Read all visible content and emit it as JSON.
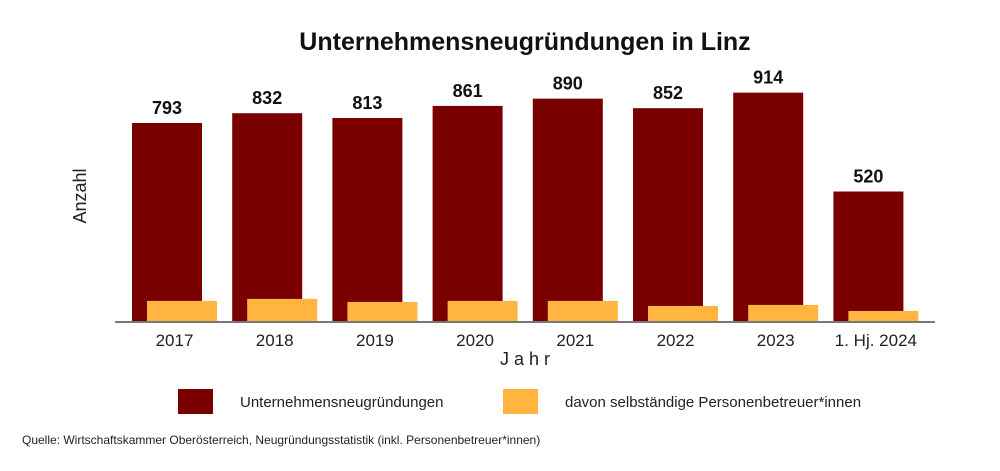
{
  "chart_data": {
    "type": "bar",
    "title": "Unternehmensneugründungen in Linz",
    "xlabel": "J a h r",
    "ylabel": "Anzahl",
    "categories": [
      "2017",
      "2018",
      "2019",
      "2020",
      "2021",
      "2022",
      "2023",
      "1. Hj. 2024"
    ],
    "series": [
      {
        "name": "Unternehmensneugründungen",
        "color": "#7a0000",
        "values": [
          793,
          832,
          813,
          861,
          890,
          852,
          914,
          520
        ],
        "labels": [
          "793",
          "832",
          "813",
          "861",
          "890",
          "852",
          "914",
          "520"
        ]
      },
      {
        "name": "davon selbständige Personenbetreuer*innen",
        "color": "#ffb540",
        "values": [
          84,
          92,
          80,
          84,
          84,
          64,
          68,
          44
        ]
      }
    ],
    "ylim": [
      0,
      1000
    ],
    "grid": false,
    "legend_position": "bottom",
    "source": "Quelle: Wirtschaftskammer Oberösterreich, Neugründungsstatistik (inkl. Personenbetreuer*innen)"
  }
}
